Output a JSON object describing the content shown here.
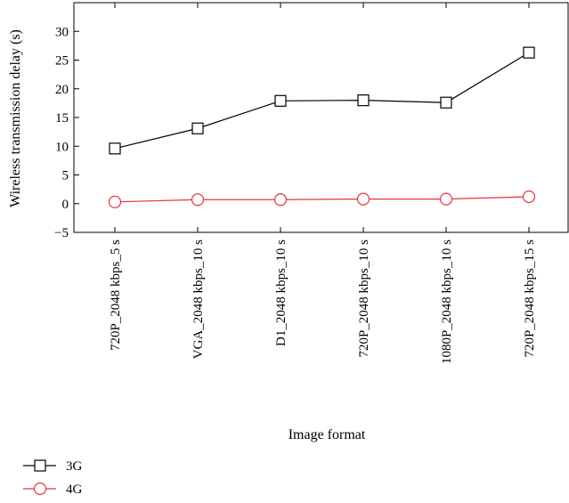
{
  "chart_data": {
    "type": "line",
    "xlabel": "Image format",
    "ylabel": "Wireless transmission delay (s)",
    "categories": [
      "720P_2048 kbps_5 s",
      "VGA_2048 kbps_10 s",
      "D1_2048 kbps_10 s",
      "720P_2048 kbps_10 s",
      "1080P_2048 kbps_10 s",
      "720P_2048 kbps_15 s"
    ],
    "ylim": [
      -5,
      35
    ],
    "yticks": [
      -5,
      0,
      5,
      10,
      15,
      20,
      25,
      30
    ],
    "grid": false,
    "legend_position": "bottom-left",
    "series": [
      {
        "name": "3G",
        "color": "#000000",
        "marker": "square",
        "values": [
          9.6,
          13.1,
          17.9,
          18.0,
          17.6,
          26.3
        ]
      },
      {
        "name": "4G",
        "color": "#e8323c",
        "marker": "circle",
        "values": [
          0.3,
          0.7,
          0.7,
          0.8,
          0.8,
          1.2
        ]
      }
    ]
  }
}
